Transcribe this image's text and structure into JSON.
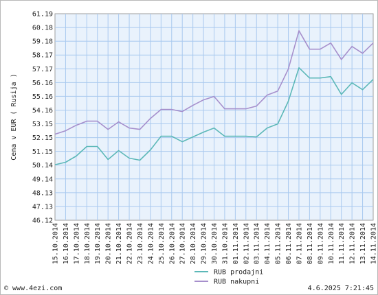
{
  "chart_data": {
    "type": "line",
    "ylabel": "Cena v EUR ( Rusija )",
    "ylim": [
      46.12,
      61.19
    ],
    "yticks": [
      "61.19",
      "60.18",
      "59.18",
      "58.17",
      "57.17",
      "56.16",
      "55.16",
      "54.16",
      "53.15",
      "52.15",
      "51.15",
      "50.14",
      "49.14",
      "48.13",
      "47.13",
      "46.12"
    ],
    "x": [
      "15.10.2014",
      "16.10.2014",
      "17.10.2014",
      "18.10.2014",
      "19.10.2014",
      "20.10.2014",
      "21.10.2014",
      "22.10.2014",
      "23.10.2014",
      "24.10.2014",
      "25.10.2014",
      "26.10.2014",
      "27.10.2014",
      "28.10.2014",
      "29.10.2014",
      "30.10.2014",
      "31.10.2014",
      "01.11.2014",
      "02.11.2014",
      "03.11.2014",
      "04.11.2014",
      "05.11.2014",
      "06.11.2014",
      "07.11.2014",
      "08.11.2014",
      "09.11.2014",
      "10.11.2014",
      "11.11.2014",
      "12.11.2014",
      "13.11.2014",
      "14.11.2014"
    ],
    "grid": true,
    "legend": "bottom-center",
    "series": [
      {
        "name": "RUB prodajni",
        "color": "#5cb8b8",
        "values": [
          50.17,
          50.35,
          50.8,
          51.5,
          51.5,
          50.55,
          51.2,
          50.65,
          50.5,
          51.25,
          52.25,
          52.25,
          51.85,
          52.2,
          52.55,
          52.85,
          52.25,
          52.25,
          52.25,
          52.2,
          52.85,
          53.15,
          54.8,
          57.25,
          56.5,
          56.5,
          56.6,
          55.3,
          56.15,
          55.65,
          56.4
        ]
      },
      {
        "name": "RUB nakupni",
        "color": "#a68fcc",
        "values": [
          52.4,
          52.65,
          53.05,
          53.35,
          53.35,
          52.75,
          53.3,
          52.85,
          52.75,
          53.55,
          54.2,
          54.2,
          54.05,
          54.5,
          54.9,
          55.15,
          54.25,
          54.25,
          54.25,
          54.45,
          55.25,
          55.55,
          57.15,
          59.95,
          58.6,
          58.6,
          59.05,
          57.85,
          58.8,
          58.3,
          59.05
        ]
      }
    ]
  },
  "footer": {
    "source": "© www.4ezi.com",
    "datetime": "4.6.2025 7:21:45"
  }
}
